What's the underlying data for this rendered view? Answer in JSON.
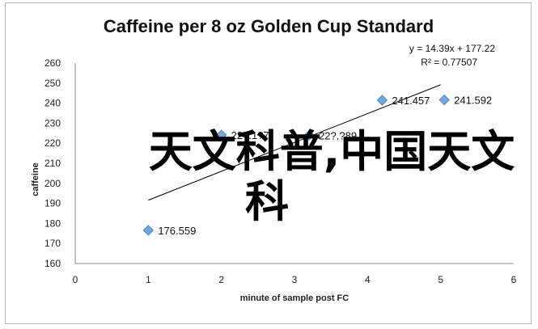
{
  "chart_data": {
    "type": "scatter",
    "title": "Caffeine per 8 oz Golden Cup Standard",
    "xlabel": "minute of sample post FC",
    "ylabel": "caffeine",
    "xlim": [
      0,
      6
    ],
    "ylim": [
      160,
      260
    ],
    "x_ticks": [
      0,
      1,
      2,
      3,
      4,
      5,
      6
    ],
    "y_ticks": [
      160,
      170,
      180,
      190,
      200,
      210,
      220,
      230,
      240,
      250,
      260
    ],
    "grid": false,
    "marker_color": "#6fa8dc",
    "series": [
      {
        "points": [
          {
            "x": 1,
            "y": 176.559,
            "label": "176.559"
          },
          {
            "x": 2,
            "y": 224.1,
            "label": "224.1?7"
          },
          {
            "x": 3.2,
            "y": 224.0,
            "label": "22?.?89"
          },
          {
            "x": 4.2,
            "y": 241.457,
            "label": "241.457"
          },
          {
            "x": 5.05,
            "y": 241.592,
            "label": "241.592"
          }
        ]
      }
    ],
    "trendline": {
      "type": "linear",
      "slope": 14.39,
      "intercept": 177.22,
      "x_range": [
        1,
        5
      ],
      "equation": "y = 14.39x + 177.22",
      "r_squared": "R² = 0.77507"
    }
  },
  "overlay": {
    "line1": "天文科普,中国天文",
    "line2": "科"
  }
}
